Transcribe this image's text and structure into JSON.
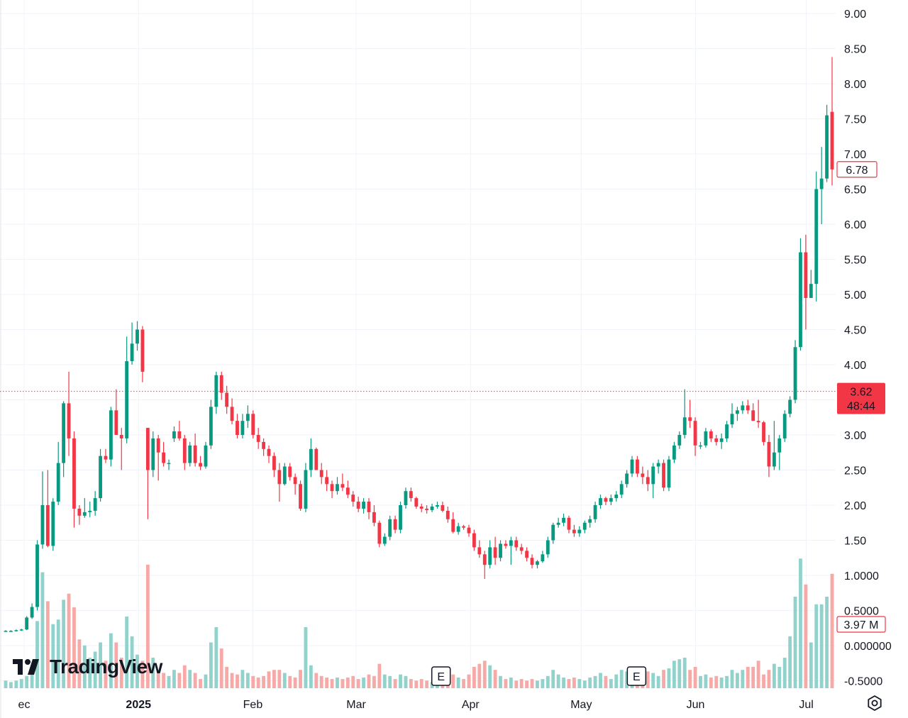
{
  "chart_data": {
    "type": "candlestick",
    "y_axis_ticks": [
      "9.00",
      "8.50",
      "8.00",
      "7.50",
      "7.00",
      "6.50",
      "6.00",
      "5.50",
      "5.00",
      "4.50",
      "4.00",
      "3.50",
      "3.00",
      "2.50",
      "2.00",
      "1.50",
      "1.0000",
      "0.5000",
      "0.000000",
      "-0.5000"
    ],
    "x_axis_labels": [
      {
        "label": "ec",
        "date": "2024-12-01",
        "bold": false
      },
      {
        "label": "2025",
        "date": "2025-01-01",
        "bold": true
      },
      {
        "label": "Feb",
        "date": "2025-02-01",
        "bold": false
      },
      {
        "label": "Mar",
        "date": "2025-03-01",
        "bold": false
      },
      {
        "label": "Apr",
        "date": "2025-04-01",
        "bold": false
      },
      {
        "label": "May",
        "date": "2025-05-01",
        "bold": false
      },
      {
        "label": "Jun",
        "date": "2025-06-01",
        "bold": false
      },
      {
        "label": "Jul",
        "date": "2025-07-01",
        "bold": false
      }
    ],
    "price_label": "6.78",
    "prev_close_label": "3.62",
    "countdown_label": "48:44",
    "volume_label": "3.97 M",
    "earnings_markers": [
      {
        "label": "E",
        "date": "2025-03-24"
      },
      {
        "label": "E",
        "date": "2025-05-16"
      }
    ],
    "candles": [
      [
        0.21,
        0.22,
        0.2,
        0.21,
        0.05
      ],
      [
        0.21,
        0.22,
        0.2,
        0.21,
        0.04
      ],
      [
        0.21,
        0.23,
        0.2,
        0.22,
        0.05
      ],
      [
        0.22,
        0.24,
        0.21,
        0.23,
        0.06
      ],
      [
        0.23,
        0.42,
        0.22,
        0.4,
        0.08
      ],
      [
        0.4,
        0.6,
        0.38,
        0.55,
        0.12
      ],
      [
        0.55,
        1.5,
        0.5,
        1.44,
        0.44
      ],
      [
        1.44,
        2.48,
        1.38,
        2.0,
        0.76
      ],
      [
        2.0,
        2.5,
        1.4,
        1.42,
        0.57
      ],
      [
        1.42,
        2.1,
        1.35,
        2.05,
        0.42
      ],
      [
        2.05,
        2.9,
        2.0,
        2.6,
        0.45
      ],
      [
        2.6,
        3.48,
        2.4,
        3.45,
        0.58
      ],
      [
        3.45,
        3.9,
        2.7,
        2.95,
        0.62
      ],
      [
        2.95,
        3.05,
        1.68,
        1.95,
        0.53
      ],
      [
        1.95,
        2.0,
        1.72,
        1.85,
        0.32
      ],
      [
        1.85,
        2.1,
        1.82,
        1.9,
        0.28
      ],
      [
        1.9,
        2.05,
        1.83,
        1.92,
        0.2
      ],
      [
        1.92,
        2.2,
        1.85,
        2.1,
        0.24
      ],
      [
        2.1,
        2.8,
        2.05,
        2.7,
        0.3
      ],
      [
        2.7,
        2.8,
        2.6,
        2.65,
        0.18
      ],
      [
        2.65,
        3.4,
        2.55,
        3.35,
        0.36
      ],
      [
        3.35,
        3.65,
        3.0,
        3.0,
        0.3
      ],
      [
        3.0,
        3.1,
        2.5,
        2.95,
        0.2
      ],
      [
        2.95,
        4.4,
        2.88,
        4.05,
        0.47
      ],
      [
        4.05,
        4.6,
        4.0,
        4.3,
        0.34
      ],
      [
        4.3,
        4.62,
        4.2,
        4.5,
        0.22
      ],
      [
        4.5,
        4.55,
        3.75,
        3.9,
        0.18
      ],
      [
        3.1,
        3.1,
        1.8,
        2.5,
        0.81
      ],
      [
        2.5,
        3.05,
        2.4,
        2.95,
        0.2
      ],
      [
        2.95,
        3.0,
        2.35,
        2.75,
        0.12
      ],
      [
        2.75,
        2.9,
        2.55,
        2.6,
        0.1
      ],
      [
        2.6,
        2.65,
        2.5,
        2.6,
        0.08
      ],
      [
        2.95,
        3.12,
        2.9,
        3.05,
        0.12
      ],
      [
        3.05,
        3.2,
        2.92,
        2.95,
        0.1
      ],
      [
        2.95,
        3.0,
        2.5,
        2.6,
        0.15
      ],
      [
        2.6,
        2.9,
        2.55,
        2.85,
        0.12
      ],
      [
        2.85,
        3.02,
        2.55,
        2.6,
        0.1
      ],
      [
        2.6,
        2.7,
        2.5,
        2.55,
        0.06
      ],
      [
        2.55,
        2.9,
        2.52,
        2.85,
        0.09
      ],
      [
        2.85,
        3.5,
        2.8,
        3.4,
        0.3
      ],
      [
        3.4,
        3.9,
        3.3,
        3.85,
        0.4
      ],
      [
        3.85,
        3.9,
        3.5,
        3.6,
        0.26
      ],
      [
        3.6,
        3.7,
        3.3,
        3.4,
        0.14
      ],
      [
        3.4,
        3.52,
        3.15,
        3.2,
        0.1
      ],
      [
        3.2,
        3.3,
        2.95,
        3.0,
        0.09
      ],
      [
        3.0,
        3.3,
        2.95,
        3.2,
        0.12
      ],
      [
        3.2,
        3.42,
        3.1,
        3.3,
        0.1
      ],
      [
        3.3,
        3.35,
        2.95,
        3.0,
        0.08
      ],
      [
        3.0,
        3.1,
        2.8,
        2.9,
        0.07
      ],
      [
        2.9,
        2.95,
        2.7,
        2.8,
        0.08
      ],
      [
        2.8,
        2.85,
        2.6,
        2.7,
        0.11
      ],
      [
        2.7,
        2.75,
        2.4,
        2.5,
        0.12
      ],
      [
        2.5,
        2.6,
        2.05,
        2.3,
        0.12
      ],
      [
        2.3,
        2.6,
        2.28,
        2.55,
        0.1
      ],
      [
        2.55,
        2.6,
        2.35,
        2.4,
        0.08
      ],
      [
        2.4,
        2.45,
        2.15,
        2.3,
        0.07
      ],
      [
        2.3,
        2.35,
        1.92,
        1.95,
        0.12
      ],
      [
        1.95,
        2.6,
        1.9,
        2.5,
        0.4
      ],
      [
        2.5,
        2.95,
        2.4,
        2.8,
        0.15
      ],
      [
        2.8,
        2.82,
        2.5,
        2.5,
        0.1
      ],
      [
        2.5,
        2.6,
        2.3,
        2.4,
        0.08
      ],
      [
        2.4,
        2.5,
        2.2,
        2.3,
        0.07
      ],
      [
        2.3,
        2.35,
        2.1,
        2.2,
        0.06
      ],
      [
        2.2,
        2.4,
        2.15,
        2.3,
        0.07
      ],
      [
        2.3,
        2.45,
        2.2,
        2.25,
        0.06
      ],
      [
        2.25,
        2.35,
        2.1,
        2.15,
        0.07
      ],
      [
        2.15,
        2.2,
        1.98,
        2.05,
        0.08
      ],
      [
        2.05,
        2.12,
        1.9,
        1.95,
        0.06
      ],
      [
        1.95,
        2.1,
        1.88,
        2.05,
        0.07
      ],
      [
        2.05,
        2.1,
        1.8,
        1.9,
        0.09
      ],
      [
        1.9,
        2.0,
        1.7,
        1.75,
        0.08
      ],
      [
        1.75,
        1.78,
        1.4,
        1.45,
        0.16
      ],
      [
        1.45,
        1.6,
        1.42,
        1.55,
        0.09
      ],
      [
        1.55,
        1.85,
        1.5,
        1.8,
        0.08
      ],
      [
        1.8,
        1.85,
        1.6,
        1.65,
        0.06
      ],
      [
        1.65,
        2.05,
        1.6,
        2.0,
        0.09
      ],
      [
        2.0,
        2.25,
        1.95,
        2.2,
        0.08
      ],
      [
        2.2,
        2.25,
        2.05,
        2.1,
        0.06
      ],
      [
        2.1,
        2.12,
        1.95,
        1.98,
        0.05
      ],
      [
        1.98,
        2.02,
        1.9,
        1.95,
        0.06
      ],
      [
        1.95,
        2.0,
        1.88,
        1.93,
        0.05
      ],
      [
        1.93,
        2.02,
        1.9,
        1.98,
        0.04
      ],
      [
        1.98,
        2.05,
        1.95,
        2.0,
        0.05
      ],
      [
        2.0,
        2.05,
        1.9,
        1.92,
        0.06
      ],
      [
        1.92,
        1.98,
        1.75,
        1.8,
        0.07
      ],
      [
        1.8,
        1.9,
        1.6,
        1.62,
        0.09
      ],
      [
        1.62,
        1.75,
        1.58,
        1.7,
        0.07
      ],
      [
        1.7,
        1.72,
        1.65,
        1.68,
        0.06
      ],
      [
        1.68,
        1.72,
        1.55,
        1.6,
        0.09
      ],
      [
        1.6,
        1.65,
        1.35,
        1.4,
        0.14
      ],
      [
        1.4,
        1.5,
        1.25,
        1.3,
        0.16
      ],
      [
        1.3,
        1.35,
        0.95,
        1.15,
        0.18
      ],
      [
        1.15,
        1.5,
        1.1,
        1.4,
        0.15
      ],
      [
        1.4,
        1.55,
        1.15,
        1.25,
        0.12
      ],
      [
        1.25,
        1.5,
        1.2,
        1.45,
        0.08
      ],
      [
        1.45,
        1.5,
        1.38,
        1.42,
        0.06
      ],
      [
        1.42,
        1.55,
        1.15,
        1.5,
        0.07
      ],
      [
        1.5,
        1.55,
        1.35,
        1.4,
        0.05
      ],
      [
        1.4,
        1.45,
        1.3,
        1.35,
        0.06
      ],
      [
        1.35,
        1.4,
        1.2,
        1.25,
        0.05
      ],
      [
        1.25,
        1.3,
        1.1,
        1.15,
        0.06
      ],
      [
        1.15,
        1.22,
        1.1,
        1.2,
        0.05
      ],
      [
        1.2,
        1.35,
        1.18,
        1.3,
        0.06
      ],
      [
        1.3,
        1.55,
        1.25,
        1.5,
        0.08
      ],
      [
        1.5,
        1.75,
        1.45,
        1.72,
        0.12
      ],
      [
        1.72,
        1.82,
        1.68,
        1.75,
        0.09
      ],
      [
        1.75,
        1.88,
        1.7,
        1.82,
        0.07
      ],
      [
        1.82,
        1.85,
        1.6,
        1.65,
        0.06
      ],
      [
        1.65,
        1.72,
        1.55,
        1.6,
        0.07
      ],
      [
        1.6,
        1.7,
        1.55,
        1.65,
        0.06
      ],
      [
        1.65,
        1.78,
        1.6,
        1.75,
        0.05
      ],
      [
        1.75,
        1.85,
        1.68,
        1.8,
        0.07
      ],
      [
        1.8,
        2.05,
        1.75,
        2.0,
        0.08
      ],
      [
        2.0,
        2.15,
        1.95,
        2.1,
        0.1
      ],
      [
        2.1,
        2.12,
        2.0,
        2.05,
        0.08
      ],
      [
        2.05,
        2.15,
        2.0,
        2.1,
        0.06
      ],
      [
        2.1,
        2.2,
        2.05,
        2.15,
        0.09
      ],
      [
        2.15,
        2.35,
        2.1,
        2.3,
        0.12
      ],
      [
        2.3,
        2.5,
        2.25,
        2.45,
        0.11
      ],
      [
        2.45,
        2.7,
        2.4,
        2.65,
        0.14
      ],
      [
        2.65,
        2.7,
        2.4,
        2.45,
        0.11
      ],
      [
        2.45,
        2.55,
        2.3,
        2.4,
        0.09
      ],
      [
        2.4,
        2.5,
        2.2,
        2.3,
        0.11
      ],
      [
        2.3,
        2.6,
        2.1,
        2.55,
        0.1
      ],
      [
        2.55,
        2.65,
        2.45,
        2.6,
        0.08
      ],
      [
        2.6,
        2.65,
        2.2,
        2.25,
        0.12
      ],
      [
        2.25,
        2.7,
        2.2,
        2.65,
        0.13
      ],
      [
        2.65,
        2.9,
        2.6,
        2.85,
        0.18
      ],
      [
        2.85,
        3.05,
        2.8,
        3.0,
        0.19
      ],
      [
        3.0,
        3.65,
        2.95,
        3.25,
        0.2
      ],
      [
        3.25,
        3.5,
        3.1,
        3.2,
        0.12
      ],
      [
        3.2,
        3.25,
        2.7,
        2.85,
        0.14
      ],
      [
        2.85,
        2.9,
        2.8,
        2.85,
        0.08
      ],
      [
        2.85,
        3.1,
        2.82,
        3.05,
        0.09
      ],
      [
        3.05,
        3.08,
        2.9,
        2.95,
        0.07
      ],
      [
        2.95,
        3.0,
        2.85,
        2.9,
        0.08
      ],
      [
        2.9,
        3.02,
        2.8,
        2.95,
        0.07
      ],
      [
        2.95,
        3.2,
        2.9,
        3.15,
        0.08
      ],
      [
        3.15,
        3.45,
        3.1,
        3.3,
        0.12
      ],
      [
        3.3,
        3.4,
        3.2,
        3.35,
        0.1
      ],
      [
        3.35,
        3.48,
        3.3,
        3.42,
        0.12
      ],
      [
        3.42,
        3.5,
        3.3,
        3.35,
        0.14
      ],
      [
        3.35,
        3.45,
        3.2,
        3.2,
        0.14
      ],
      [
        3.2,
        3.5,
        3.1,
        3.18,
        0.18
      ],
      [
        3.18,
        3.2,
        2.85,
        2.9,
        0.09
      ],
      [
        2.9,
        3.0,
        2.4,
        2.55,
        0.12
      ],
      [
        2.55,
        3.2,
        2.5,
        2.75,
        0.16
      ],
      [
        2.75,
        3.0,
        2.5,
        2.95,
        0.14
      ],
      [
        2.95,
        3.35,
        2.9,
        3.3,
        0.2
      ],
      [
        3.3,
        3.55,
        3.25,
        3.5,
        0.34
      ],
      [
        3.5,
        4.35,
        3.45,
        4.25,
        0.6
      ],
      [
        4.25,
        5.8,
        4.2,
        5.6,
        0.85
      ],
      [
        5.6,
        5.85,
        4.5,
        4.95,
        0.68
      ],
      [
        4.95,
        5.35,
        4.95,
        5.15,
        0.3
      ],
      [
        5.15,
        6.75,
        4.9,
        6.5,
        0.55
      ],
      [
        6.5,
        7.1,
        6.0,
        6.65,
        0.55
      ],
      [
        6.65,
        7.7,
        6.6,
        7.55,
        0.6
      ],
      [
        7.6,
        8.38,
        6.55,
        6.78,
        0.75
      ]
    ]
  }
}
